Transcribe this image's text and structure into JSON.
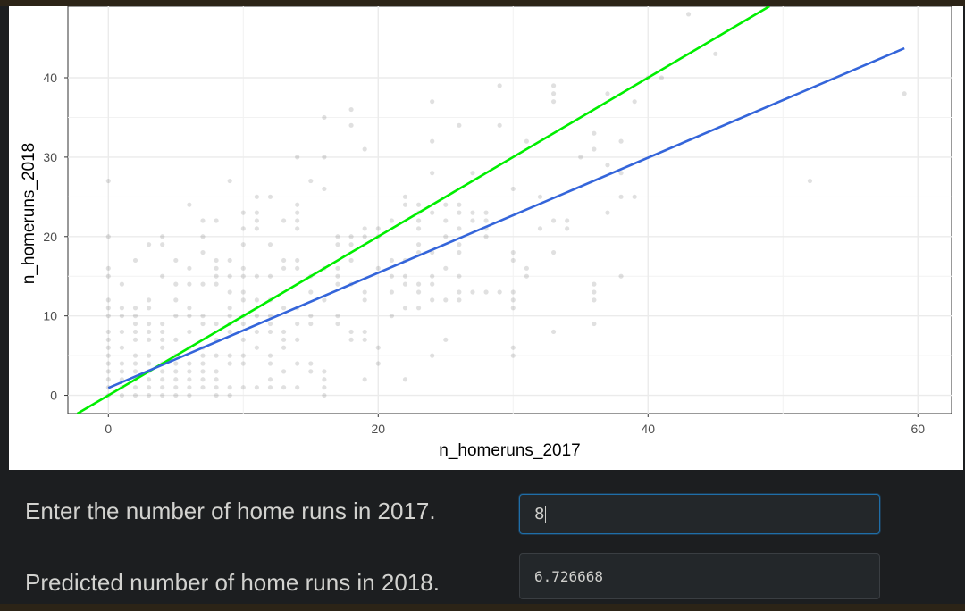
{
  "chart_data": {
    "type": "scatter",
    "xlabel": "n_homeruns_2017",
    "ylabel": "n_homeruns_2018",
    "xlim": [
      -3,
      62.5
    ],
    "ylim": [
      -2.3,
      49
    ],
    "x_ticks": [
      0,
      20,
      40,
      60
    ],
    "y_ticks": [
      0,
      10,
      20,
      30,
      40
    ],
    "grid": true,
    "points": [
      [
        0,
        0
      ],
      [
        0,
        1
      ],
      [
        0,
        2
      ],
      [
        0,
        3
      ],
      [
        0,
        4
      ],
      [
        0,
        5
      ],
      [
        0,
        6
      ],
      [
        0,
        7
      ],
      [
        0,
        8
      ],
      [
        0,
        10
      ],
      [
        0,
        11
      ],
      [
        0,
        12
      ],
      [
        0,
        15
      ],
      [
        0,
        16
      ],
      [
        0,
        20
      ],
      [
        0,
        27
      ],
      [
        1,
        0
      ],
      [
        1,
        1
      ],
      [
        1,
        2
      ],
      [
        1,
        3
      ],
      [
        1,
        4
      ],
      [
        1,
        6
      ],
      [
        1,
        8
      ],
      [
        1,
        10
      ],
      [
        1,
        11
      ],
      [
        1,
        14
      ],
      [
        2,
        0
      ],
      [
        2,
        1
      ],
      [
        2,
        2
      ],
      [
        2,
        3
      ],
      [
        2,
        4
      ],
      [
        2,
        5
      ],
      [
        2,
        7
      ],
      [
        2,
        8
      ],
      [
        2,
        9
      ],
      [
        2,
        10
      ],
      [
        2,
        11
      ],
      [
        2,
        17
      ],
      [
        3,
        0
      ],
      [
        3,
        1
      ],
      [
        3,
        2
      ],
      [
        3,
        3
      ],
      [
        3,
        4
      ],
      [
        3,
        5
      ],
      [
        3,
        7
      ],
      [
        3,
        8
      ],
      [
        3,
        9
      ],
      [
        3,
        11
      ],
      [
        3,
        12
      ],
      [
        3,
        19
      ],
      [
        4,
        0
      ],
      [
        4,
        1
      ],
      [
        4,
        2
      ],
      [
        4,
        3
      ],
      [
        4,
        4
      ],
      [
        4,
        6
      ],
      [
        4,
        7
      ],
      [
        4,
        8
      ],
      [
        4,
        9
      ],
      [
        4,
        15
      ],
      [
        4,
        19
      ],
      [
        4,
        20
      ],
      [
        5,
        0
      ],
      [
        5,
        1
      ],
      [
        5,
        2
      ],
      [
        5,
        3
      ],
      [
        5,
        4
      ],
      [
        5,
        5
      ],
      [
        5,
        7
      ],
      [
        5,
        10
      ],
      [
        5,
        12
      ],
      [
        5,
        14
      ],
      [
        5,
        17
      ],
      [
        6,
        0
      ],
      [
        6,
        1
      ],
      [
        6,
        2
      ],
      [
        6,
        3
      ],
      [
        6,
        4
      ],
      [
        6,
        6
      ],
      [
        6,
        8
      ],
      [
        6,
        10
      ],
      [
        6,
        11
      ],
      [
        6,
        14
      ],
      [
        6,
        16
      ],
      [
        6,
        24
      ],
      [
        7,
        1
      ],
      [
        7,
        2
      ],
      [
        7,
        3
      ],
      [
        7,
        4
      ],
      [
        7,
        5
      ],
      [
        7,
        6
      ],
      [
        7,
        9
      ],
      [
        7,
        10
      ],
      [
        7,
        14
      ],
      [
        7,
        18
      ],
      [
        7,
        20
      ],
      [
        7,
        22
      ],
      [
        8,
        0
      ],
      [
        8,
        1
      ],
      [
        8,
        2
      ],
      [
        8,
        3
      ],
      [
        8,
        5
      ],
      [
        8,
        7
      ],
      [
        8,
        9
      ],
      [
        8,
        14
      ],
      [
        8,
        15
      ],
      [
        8,
        16
      ],
      [
        8,
        17
      ],
      [
        8,
        22
      ],
      [
        9,
        0
      ],
      [
        9,
        1
      ],
      [
        9,
        4
      ],
      [
        9,
        5
      ],
      [
        9,
        8
      ],
      [
        9,
        9
      ],
      [
        9,
        10
      ],
      [
        9,
        11
      ],
      [
        9,
        13
      ],
      [
        9,
        15
      ],
      [
        9,
        17
      ],
      [
        9,
        27
      ],
      [
        10,
        1
      ],
      [
        10,
        4
      ],
      [
        10,
        5
      ],
      [
        10,
        7
      ],
      [
        10,
        9
      ],
      [
        10,
        10
      ],
      [
        10,
        12
      ],
      [
        10,
        13
      ],
      [
        10,
        15
      ],
      [
        10,
        16
      ],
      [
        10,
        19
      ],
      [
        10,
        21
      ],
      [
        10,
        23
      ],
      [
        11,
        1
      ],
      [
        11,
        6
      ],
      [
        11,
        8
      ],
      [
        11,
        10
      ],
      [
        11,
        12
      ],
      [
        11,
        15
      ],
      [
        11,
        21
      ],
      [
        11,
        22
      ],
      [
        11,
        23
      ],
      [
        11,
        25
      ],
      [
        12,
        1
      ],
      [
        12,
        2
      ],
      [
        12,
        4
      ],
      [
        12,
        5
      ],
      [
        12,
        8
      ],
      [
        12,
        9
      ],
      [
        12,
        10
      ],
      [
        12,
        12
      ],
      [
        12,
        15
      ],
      [
        12,
        19
      ],
      [
        12,
        25
      ],
      [
        13,
        1
      ],
      [
        13,
        3
      ],
      [
        13,
        6
      ],
      [
        13,
        7
      ],
      [
        13,
        8
      ],
      [
        13,
        11
      ],
      [
        13,
        16
      ],
      [
        13,
        17
      ],
      [
        13,
        22
      ],
      [
        14,
        1
      ],
      [
        14,
        4
      ],
      [
        14,
        7
      ],
      [
        14,
        9
      ],
      [
        14,
        11
      ],
      [
        14,
        16
      ],
      [
        14,
        17
      ],
      [
        14,
        21
      ],
      [
        14,
        22
      ],
      [
        14,
        23
      ],
      [
        14,
        24
      ],
      [
        14,
        30
      ],
      [
        15,
        3
      ],
      [
        15,
        4
      ],
      [
        15,
        9
      ],
      [
        15,
        10
      ],
      [
        15,
        13
      ],
      [
        15,
        15
      ],
      [
        15,
        27
      ],
      [
        16,
        0
      ],
      [
        16,
        1
      ],
      [
        16,
        2
      ],
      [
        16,
        3
      ],
      [
        16,
        12
      ],
      [
        16,
        16
      ],
      [
        16,
        26
      ],
      [
        16,
        30
      ],
      [
        16,
        35
      ],
      [
        17,
        9
      ],
      [
        17,
        10
      ],
      [
        17,
        14
      ],
      [
        17,
        15
      ],
      [
        17,
        16
      ],
      [
        17,
        19
      ],
      [
        17,
        20
      ],
      [
        18,
        7
      ],
      [
        18,
        8
      ],
      [
        18,
        14
      ],
      [
        18,
        17
      ],
      [
        18,
        19
      ],
      [
        18,
        20
      ],
      [
        18,
        34
      ],
      [
        18,
        36
      ],
      [
        19,
        2
      ],
      [
        19,
        7
      ],
      [
        19,
        8
      ],
      [
        19,
        12
      ],
      [
        19,
        13
      ],
      [
        19,
        20
      ],
      [
        19,
        21
      ],
      [
        19,
        31
      ],
      [
        20,
        4
      ],
      [
        20,
        6
      ],
      [
        20,
        16
      ],
      [
        20,
        20
      ],
      [
        20,
        21
      ],
      [
        21,
        10
      ],
      [
        21,
        13
      ],
      [
        21,
        15
      ],
      [
        21,
        17
      ],
      [
        21,
        22
      ],
      [
        22,
        2
      ],
      [
        22,
        11
      ],
      [
        22,
        14
      ],
      [
        22,
        15
      ],
      [
        22,
        17
      ],
      [
        22,
        24
      ],
      [
        22,
        25
      ],
      [
        23,
        11
      ],
      [
        23,
        13
      ],
      [
        23,
        14
      ],
      [
        23,
        18
      ],
      [
        23,
        19
      ],
      [
        23,
        21
      ],
      [
        23,
        22
      ],
      [
        23,
        23
      ],
      [
        23,
        24
      ],
      [
        24,
        5
      ],
      [
        24,
        12
      ],
      [
        24,
        14
      ],
      [
        24,
        15
      ],
      [
        24,
        18
      ],
      [
        24,
        23
      ],
      [
        24,
        28
      ],
      [
        24,
        32
      ],
      [
        24,
        37
      ],
      [
        25,
        7
      ],
      [
        25,
        12
      ],
      [
        25,
        16
      ],
      [
        25,
        20
      ],
      [
        25,
        22
      ],
      [
        25,
        24
      ],
      [
        26,
        12
      ],
      [
        26,
        13
      ],
      [
        26,
        15
      ],
      [
        26,
        18
      ],
      [
        26,
        19
      ],
      [
        26,
        21
      ],
      [
        26,
        23
      ],
      [
        26,
        24
      ],
      [
        26,
        34
      ],
      [
        27,
        13
      ],
      [
        27,
        22
      ],
      [
        27,
        23
      ],
      [
        27,
        28
      ],
      [
        28,
        13
      ],
      [
        28,
        20
      ],
      [
        28,
        21
      ],
      [
        28,
        22
      ],
      [
        28,
        23
      ],
      [
        29,
        13
      ],
      [
        29,
        34
      ],
      [
        29,
        39
      ],
      [
        30,
        5
      ],
      [
        30,
        6
      ],
      [
        30,
        11
      ],
      [
        30,
        12
      ],
      [
        30,
        13
      ],
      [
        30,
        17
      ],
      [
        30,
        18
      ],
      [
        30,
        26
      ],
      [
        31,
        15
      ],
      [
        31,
        16
      ],
      [
        31,
        32
      ],
      [
        32,
        21
      ],
      [
        32,
        25
      ],
      [
        33,
        8
      ],
      [
        33,
        18
      ],
      [
        33,
        22
      ],
      [
        33,
        37
      ],
      [
        33,
        38
      ],
      [
        33,
        39
      ],
      [
        34,
        21
      ],
      [
        34,
        22
      ],
      [
        35,
        30
      ],
      [
        36,
        9
      ],
      [
        36,
        12
      ],
      [
        36,
        13
      ],
      [
        36,
        14
      ],
      [
        36,
        31
      ],
      [
        36,
        33
      ],
      [
        37,
        23
      ],
      [
        37,
        29
      ],
      [
        37,
        38
      ],
      [
        38,
        15
      ],
      [
        38,
        25
      ],
      [
        38,
        28
      ],
      [
        38,
        32
      ],
      [
        39,
        25
      ],
      [
        39,
        37
      ],
      [
        40,
        40
      ],
      [
        41,
        40
      ],
      [
        43,
        48
      ],
      [
        45,
        43
      ],
      [
        52,
        27
      ],
      [
        59,
        38
      ]
    ],
    "point_color": "#000000",
    "point_opacity": 0.12,
    "lines": [
      {
        "color": "#00ee00",
        "slope": 1,
        "intercept": 0
      },
      {
        "color": "#3465da",
        "slope": 0.7251,
        "intercept": 0.9256
      }
    ]
  },
  "form": {
    "input_label": "Enter the number of home runs in 2017.",
    "input_value": "8",
    "output_label": "Predicted number of home runs in 2018.",
    "output_value": "6.726668"
  },
  "colors": {
    "background": "#1c1e20",
    "frame": "#2c2417",
    "accent_focus": "#1f6ea8"
  }
}
